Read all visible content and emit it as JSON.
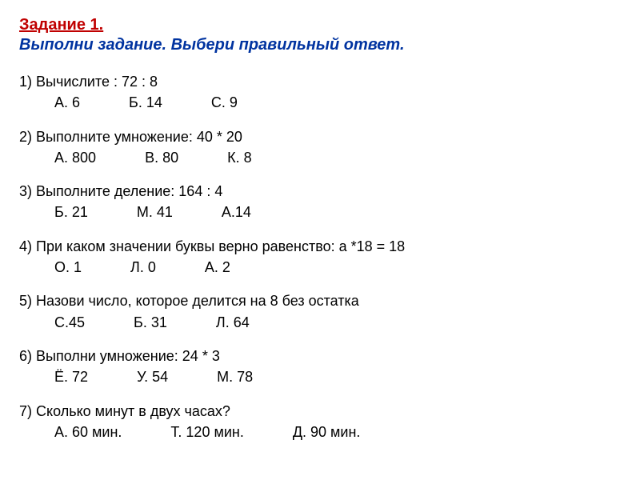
{
  "header": {
    "line1": "Задание 1.",
    "line2": "Выполни задание. Выбери правильный ответ."
  },
  "questions": [
    {
      "prompt": "1) Вычислите :    72 : 8",
      "options": [
        "А. 6",
        "Б. 14",
        "С. 9"
      ]
    },
    {
      "prompt": "2) Выполните умножение:     40 * 20",
      "options": [
        "А. 800",
        "В. 80",
        "К. 8"
      ]
    },
    {
      "prompt": "3) Выполните деление:    164 : 4",
      "options": [
        "Б. 21",
        "М. 41",
        "А.14"
      ]
    },
    {
      "prompt": "4) При каком значении буквы верно равенство:    а *18 = 18",
      "options": [
        "О. 1",
        "Л. 0",
        "А. 2"
      ]
    },
    {
      "prompt": "5) Назови число, которое делится на 8 без остатка",
      "options": [
        "С.45",
        "Б. 31",
        "Л. 64"
      ]
    },
    {
      "prompt": "6) Выполни умножение:  24 * 3",
      "options": [
        "Ё. 72",
        "У. 54",
        "М. 78"
      ]
    },
    {
      "prompt": "7) Сколько минут в двух часах?",
      "options": [
        "А. 60 мин.",
        "Т.  120 мин.",
        "Д. 90 мин."
      ]
    }
  ],
  "colors": {
    "header1": "#c00000",
    "header2": "#0033a0",
    "body": "#000000",
    "background": "#ffffff"
  },
  "typography": {
    "header_fontsize": 20,
    "body_fontsize": 18,
    "font_family": "Arial"
  }
}
